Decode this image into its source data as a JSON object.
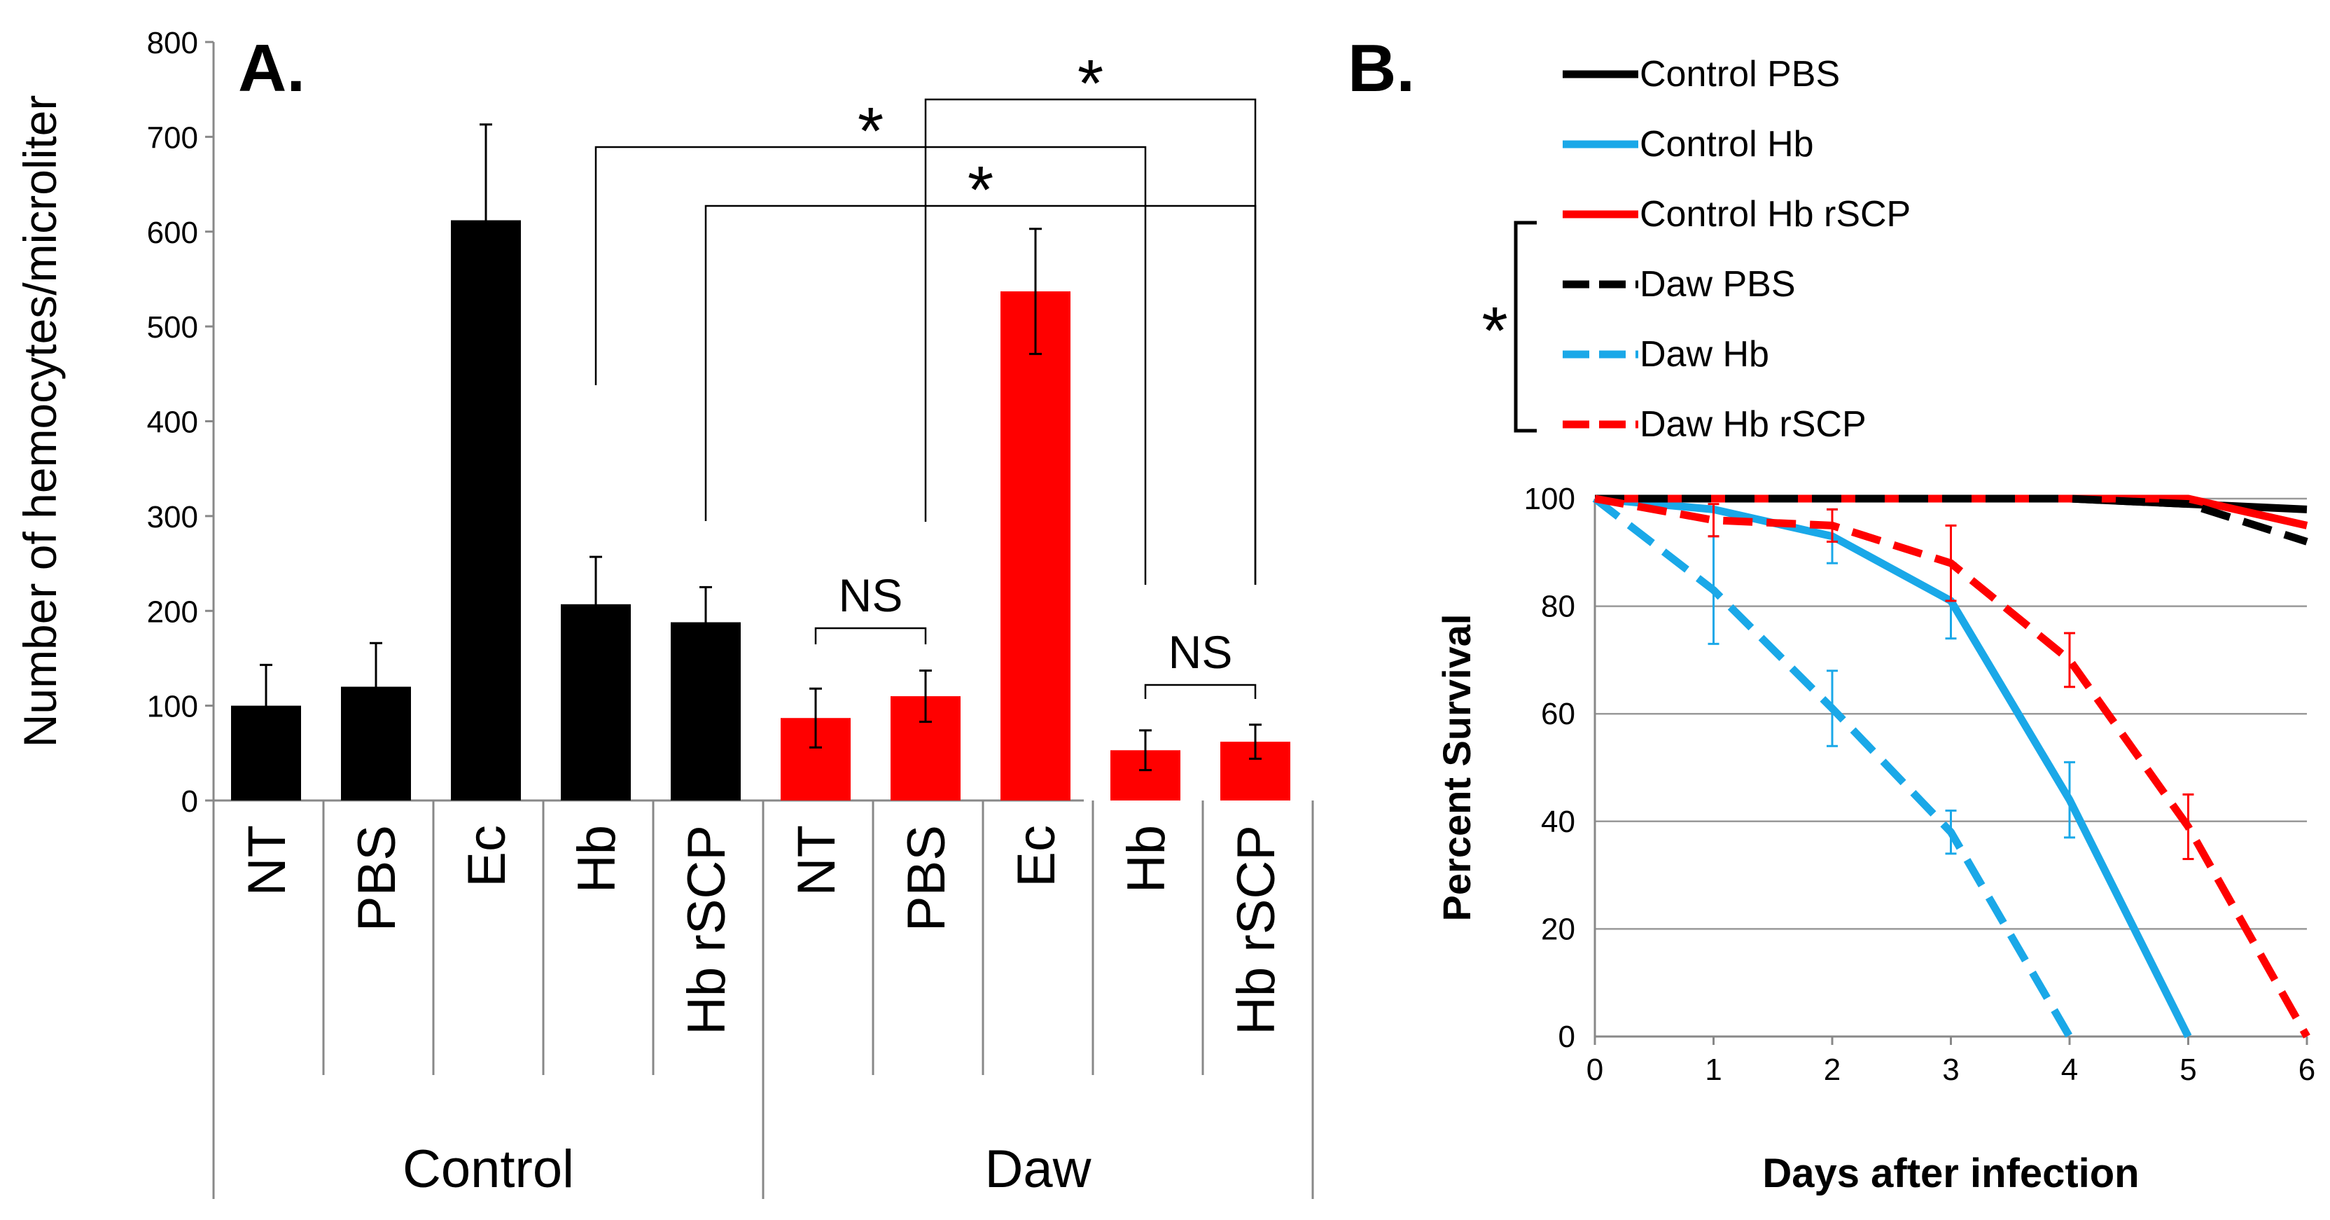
{
  "panel_a_label": "A.",
  "panel_b_label": "B.",
  "chart_data": [
    {
      "type": "bar",
      "title": "",
      "ylabel": "Number of hemocytes/microliter",
      "xlabel": "",
      "ylim": [
        0,
        800
      ],
      "yticks": [
        0,
        100,
        200,
        300,
        400,
        500,
        600,
        700,
        800
      ],
      "categories": [
        "NT",
        "PBS",
        "Ec",
        "Hb",
        "Hb rSCP",
        "NT",
        "PBS",
        "Ec",
        "Hb",
        "Hb rSCP"
      ],
      "groups": [
        {
          "label": "Control",
          "color": "#000000"
        },
        {
          "label": "Daw",
          "color": "#ff0000"
        }
      ],
      "bar_group": [
        0,
        0,
        0,
        0,
        0,
        1,
        1,
        1,
        1,
        1
      ],
      "values": [
        100,
        120,
        612,
        207,
        188,
        87,
        110,
        537,
        53,
        62
      ],
      "errors": [
        43,
        46,
        101,
        50,
        37,
        31,
        27,
        66,
        21,
        18
      ],
      "annotations": [
        {
          "text": "*",
          "from": 3,
          "to": 8
        },
        {
          "text": "*",
          "from": 6,
          "to": 9
        },
        {
          "text": "*",
          "from": 4,
          "to": 9
        },
        {
          "text": "NS",
          "from": 5,
          "to": 6
        },
        {
          "text": "NS",
          "from": 8,
          "to": 9
        }
      ]
    },
    {
      "type": "line",
      "title": "",
      "xlabel": "Days after infection",
      "ylabel": "Percent Survival",
      "xlim": [
        0,
        6
      ],
      "ylim": [
        0,
        100
      ],
      "xticks": [
        0,
        1,
        2,
        3,
        4,
        5,
        6
      ],
      "yticks": [
        0,
        20,
        40,
        60,
        80,
        100
      ],
      "grid": true,
      "legend_position": "top",
      "significance_bracket": "*",
      "series": [
        {
          "name": "Control PBS",
          "color": "#000000",
          "dash": false,
          "x": [
            0,
            1,
            2,
            3,
            4,
            5,
            6
          ],
          "y": [
            100,
            100,
            100,
            100,
            100,
            99,
            98
          ],
          "err": [
            0,
            0,
            0,
            0,
            0,
            0,
            0
          ]
        },
        {
          "name": "Control Hb",
          "color": "#1aa8e8",
          "dash": false,
          "x": [
            0,
            1,
            2,
            3,
            4,
            5
          ],
          "y": [
            100,
            98,
            93,
            81,
            44,
            0
          ],
          "err": [
            0,
            0,
            5,
            7,
            7,
            0
          ]
        },
        {
          "name": "Control Hb rSCP",
          "color": "#ff0000",
          "dash": false,
          "x": [
            0,
            1,
            2,
            3,
            4,
            5,
            6
          ],
          "y": [
            100,
            100,
            100,
            100,
            100,
            100,
            95
          ],
          "err": [
            0,
            0,
            0,
            0,
            0,
            0,
            0
          ]
        },
        {
          "name": "Daw PBS",
          "color": "#000000",
          "dash": true,
          "x": [
            0,
            1,
            2,
            3,
            4,
            5,
            6
          ],
          "y": [
            100,
            100,
            100,
            100,
            100,
            99,
            92
          ],
          "err": [
            0,
            0,
            0,
            0,
            0,
            0,
            0
          ]
        },
        {
          "name": "Daw Hb",
          "color": "#1aa8e8",
          "dash": true,
          "x": [
            0,
            1,
            2,
            3,
            4
          ],
          "y": [
            100,
            83,
            61,
            38,
            0
          ],
          "err": [
            0,
            10,
            7,
            4,
            0
          ]
        },
        {
          "name": "Daw Hb rSCP",
          "color": "#ff0000",
          "dash": true,
          "x": [
            0,
            1,
            2,
            3,
            4,
            5,
            6
          ],
          "y": [
            100,
            96,
            95,
            88,
            70,
            39,
            0
          ],
          "err": [
            0,
            3,
            3,
            7,
            5,
            6,
            0
          ]
        }
      ]
    }
  ]
}
